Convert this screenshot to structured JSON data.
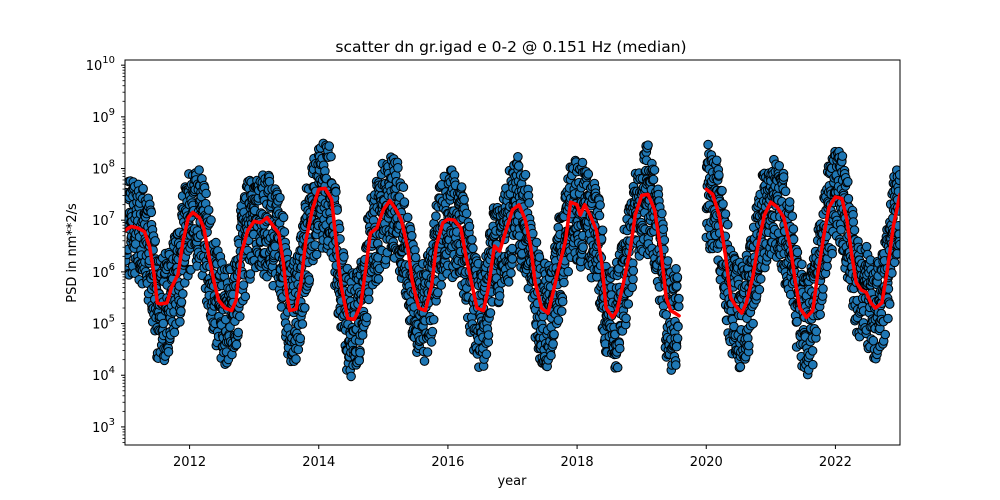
{
  "chart_data": {
    "type": "scatter",
    "title": "scatter dn gr.igad e 0-2 @ 0.151 Hz (median)",
    "xlabel": "year",
    "ylabel": "PSD in nm**2/s",
    "xlim": [
      2011.0,
      2023.0
    ],
    "ylim_log10": [
      2.65,
      10.1
    ],
    "yscale": "log",
    "grid": false,
    "x_ticks": [
      2012,
      2014,
      2016,
      2018,
      2020,
      2022
    ],
    "x_tick_labels": [
      "2012",
      "2014",
      "2016",
      "2018",
      "2020",
      "2022"
    ],
    "y_ticks_exp": [
      3,
      4,
      5,
      6,
      7,
      8,
      9,
      10
    ],
    "y_tick_labels": [
      "10",
      "10",
      "10",
      "10",
      "10",
      "10",
      "10",
      "10"
    ],
    "y_tick_exps": [
      "3",
      "4",
      "5",
      "6",
      "7",
      "8",
      "9",
      "10"
    ],
    "colors": {
      "scatter_fill": "#1f77b4",
      "scatter_edge": "#000000",
      "median_line": "#ff0000"
    },
    "data_gaps": [
      [
        2019.6,
        2019.95
      ]
    ],
    "series": [
      {
        "kind": "scatter",
        "points_per_year": 330,
        "log10_spread_lower": 1.1,
        "log10_spread_upper": 0.9
      },
      {
        "kind": "line",
        "points": [
          [
            2011.0,
            6.8
          ],
          [
            2011.1,
            6.88
          ],
          [
            2011.2,
            6.85
          ],
          [
            2011.3,
            6.78
          ],
          [
            2011.38,
            6.5
          ],
          [
            2011.45,
            5.95
          ],
          [
            2011.5,
            5.4
          ],
          [
            2011.55,
            5.38
          ],
          [
            2011.65,
            5.4
          ],
          [
            2011.72,
            5.7
          ],
          [
            2011.82,
            5.95
          ],
          [
            2011.9,
            6.6
          ],
          [
            2011.98,
            7.05
          ],
          [
            2012.05,
            7.15
          ],
          [
            2012.15,
            7.05
          ],
          [
            2012.22,
            6.85
          ],
          [
            2012.3,
            6.3
          ],
          [
            2012.38,
            5.8
          ],
          [
            2012.45,
            5.45
          ],
          [
            2012.55,
            5.3
          ],
          [
            2012.65,
            5.25
          ],
          [
            2012.72,
            5.45
          ],
          [
            2012.8,
            6.35
          ],
          [
            2012.9,
            6.8
          ],
          [
            2013.0,
            6.98
          ],
          [
            2013.1,
            6.95
          ],
          [
            2013.2,
            7.05
          ],
          [
            2013.3,
            6.88
          ],
          [
            2013.38,
            6.75
          ],
          [
            2013.45,
            6.2
          ],
          [
            2013.5,
            5.6
          ],
          [
            2013.55,
            5.25
          ],
          [
            2013.65,
            5.28
          ],
          [
            2013.72,
            5.75
          ],
          [
            2013.8,
            6.6
          ],
          [
            2013.9,
            7.2
          ],
          [
            2014.0,
            7.6
          ],
          [
            2014.1,
            7.62
          ],
          [
            2014.2,
            7.4
          ],
          [
            2014.28,
            6.45
          ],
          [
            2014.35,
            5.7
          ],
          [
            2014.45,
            5.1
          ],
          [
            2014.55,
            5.08
          ],
          [
            2014.65,
            5.35
          ],
          [
            2014.72,
            6.0
          ],
          [
            2014.8,
            6.75
          ],
          [
            2014.9,
            6.85
          ],
          [
            2015.0,
            7.2
          ],
          [
            2015.1,
            7.38
          ],
          [
            2015.2,
            7.2
          ],
          [
            2015.28,
            7.0
          ],
          [
            2015.38,
            6.45
          ],
          [
            2015.45,
            5.8
          ],
          [
            2015.55,
            5.3
          ],
          [
            2015.65,
            5.25
          ],
          [
            2015.75,
            5.75
          ],
          [
            2015.82,
            6.5
          ],
          [
            2015.92,
            6.95
          ],
          [
            2016.0,
            7.02
          ],
          [
            2016.1,
            7.0
          ],
          [
            2016.2,
            6.85
          ],
          [
            2016.28,
            6.3
          ],
          [
            2016.38,
            5.7
          ],
          [
            2016.45,
            5.3
          ],
          [
            2016.55,
            5.25
          ],
          [
            2016.62,
            5.65
          ],
          [
            2016.72,
            6.5
          ],
          [
            2016.8,
            6.4
          ],
          [
            2016.9,
            6.8
          ],
          [
            2017.0,
            7.2
          ],
          [
            2017.1,
            7.3
          ],
          [
            2017.2,
            7.0
          ],
          [
            2017.28,
            6.5
          ],
          [
            2017.35,
            5.8
          ],
          [
            2017.45,
            5.3
          ],
          [
            2017.55,
            5.2
          ],
          [
            2017.62,
            5.55
          ],
          [
            2017.72,
            6.1
          ],
          [
            2017.82,
            6.6
          ],
          [
            2017.9,
            7.35
          ],
          [
            2018.0,
            7.3
          ],
          [
            2018.05,
            7.1
          ],
          [
            2018.12,
            7.3
          ],
          [
            2018.2,
            7.1
          ],
          [
            2018.3,
            6.8
          ],
          [
            2018.38,
            6.2
          ],
          [
            2018.45,
            5.3
          ],
          [
            2018.55,
            5.12
          ],
          [
            2018.62,
            5.25
          ],
          [
            2018.72,
            5.8
          ],
          [
            2018.82,
            6.4
          ],
          [
            2018.9,
            7.1
          ],
          [
            2019.0,
            7.48
          ],
          [
            2019.1,
            7.5
          ],
          [
            2019.2,
            7.2
          ],
          [
            2019.3,
            6.4
          ],
          [
            2019.38,
            5.5
          ],
          [
            2019.45,
            5.25
          ],
          [
            2019.52,
            5.2
          ],
          [
            2019.58,
            5.15
          ],
          [
            2020.0,
            7.6
          ],
          [
            2020.1,
            7.5
          ],
          [
            2020.2,
            7.1
          ],
          [
            2020.3,
            6.3
          ],
          [
            2020.38,
            5.5
          ],
          [
            2020.45,
            5.35
          ],
          [
            2020.55,
            5.2
          ],
          [
            2020.62,
            5.4
          ],
          [
            2020.72,
            5.9
          ],
          [
            2020.8,
            6.5
          ],
          [
            2020.9,
            7.1
          ],
          [
            2021.0,
            7.35
          ],
          [
            2021.1,
            7.25
          ],
          [
            2021.2,
            7.05
          ],
          [
            2021.3,
            6.5
          ],
          [
            2021.38,
            5.8
          ],
          [
            2021.45,
            5.3
          ],
          [
            2021.55,
            5.12
          ],
          [
            2021.65,
            5.25
          ],
          [
            2021.72,
            5.9
          ],
          [
            2021.82,
            6.7
          ],
          [
            2021.9,
            7.25
          ],
          [
            2022.0,
            7.45
          ],
          [
            2022.1,
            7.42
          ],
          [
            2022.18,
            7.0
          ],
          [
            2022.25,
            6.35
          ],
          [
            2022.32,
            5.8
          ],
          [
            2022.4,
            5.65
          ],
          [
            2022.48,
            5.6
          ],
          [
            2022.55,
            5.4
          ],
          [
            2022.62,
            5.3
          ],
          [
            2022.72,
            5.4
          ],
          [
            2022.8,
            6.0
          ],
          [
            2022.9,
            6.9
          ],
          [
            2023.0,
            7.5
          ]
        ]
      }
    ]
  }
}
